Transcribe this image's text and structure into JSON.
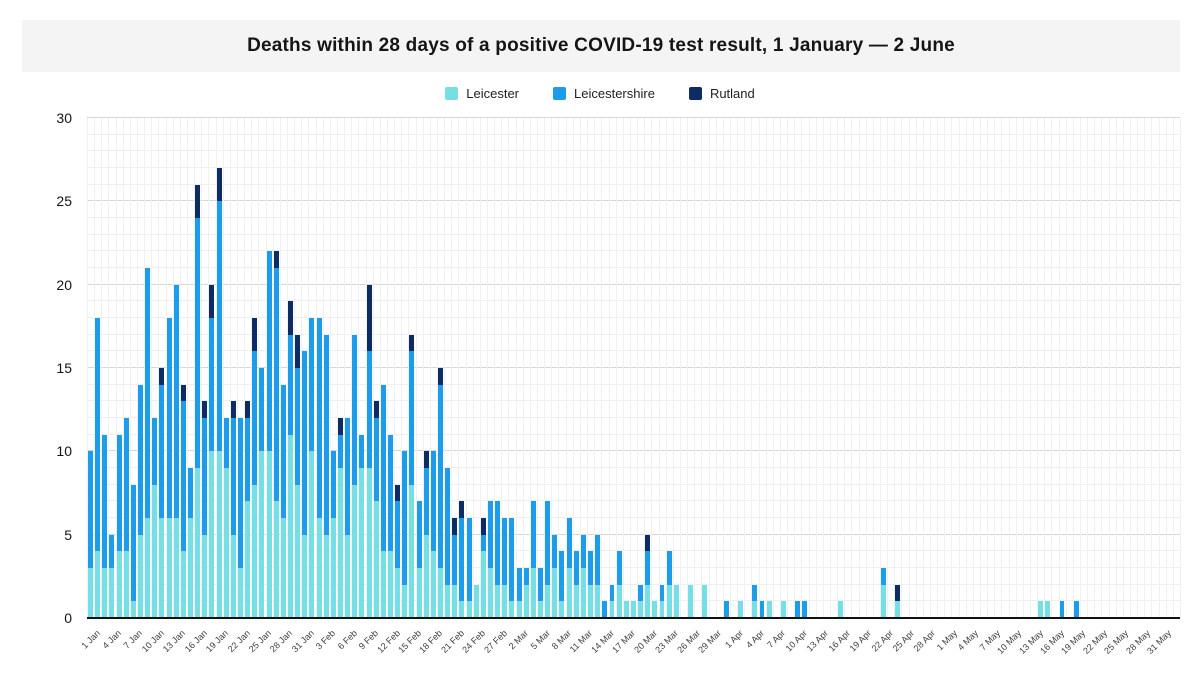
{
  "title": "Deaths within 28 days of a positive COVID-19 test result, 1 January — 2 June",
  "legend": [
    {
      "label": "Leicester",
      "color": "#76dfe6"
    },
    {
      "label": "Leicestershire",
      "color": "#1c9cea"
    },
    {
      "label": "Rutland",
      "color": "#0d2c66"
    }
  ],
  "colors": {
    "axis": "#111111",
    "grid_minor": "#efefef",
    "grid_major": "#d7d7d7",
    "title_band": "#f4f4f4"
  },
  "chart_data": {
    "type": "bar",
    "stacked": true,
    "title": "Deaths within 28 days of a positive COVID-19 test result, 1 January — 2 June",
    "xlabel": "",
    "ylabel": "",
    "ylim": [
      0,
      30
    ],
    "y_ticks": [
      0,
      5,
      10,
      15,
      20,
      25,
      30
    ],
    "grid": true,
    "legend_position": "top",
    "x_tick_every": 3,
    "x": [
      "1 Jan",
      "2 Jan",
      "3 Jan",
      "4 Jan",
      "5 Jan",
      "6 Jan",
      "7 Jan",
      "8 Jan",
      "9 Jan",
      "10 Jan",
      "11 Jan",
      "12 Jan",
      "13 Jan",
      "14 Jan",
      "15 Jan",
      "16 Jan",
      "17 Jan",
      "18 Jan",
      "19 Jan",
      "20 Jan",
      "21 Jan",
      "22 Jan",
      "23 Jan",
      "24 Jan",
      "25 Jan",
      "26 Jan",
      "27 Jan",
      "28 Jan",
      "29 Jan",
      "30 Jan",
      "31 Jan",
      "1 Feb",
      "2 Feb",
      "3 Feb",
      "4 Feb",
      "5 Feb",
      "6 Feb",
      "7 Feb",
      "8 Feb",
      "9 Feb",
      "10 Feb",
      "11 Feb",
      "12 Feb",
      "13 Feb",
      "14 Feb",
      "15 Feb",
      "16 Feb",
      "17 Feb",
      "18 Feb",
      "19 Feb",
      "20 Feb",
      "21 Feb",
      "22 Feb",
      "23 Feb",
      "24 Feb",
      "25 Feb",
      "26 Feb",
      "27 Feb",
      "28 Feb",
      "1 Mar",
      "2 Mar",
      "3 Mar",
      "4 Mar",
      "5 Mar",
      "6 Mar",
      "7 Mar",
      "8 Mar",
      "9 Mar",
      "10 Mar",
      "11 Mar",
      "12 Mar",
      "13 Mar",
      "14 Mar",
      "15 Mar",
      "16 Mar",
      "17 Mar",
      "18 Mar",
      "19 Mar",
      "20 Mar",
      "21 Mar",
      "22 Mar",
      "23 Mar",
      "24 Mar",
      "25 Mar",
      "26 Mar",
      "27 Mar",
      "28 Mar",
      "29 Mar",
      "30 Mar",
      "31 Mar",
      "1 Apr",
      "2 Apr",
      "3 Apr",
      "4 Apr",
      "5 Apr",
      "6 Apr",
      "7 Apr",
      "8 Apr",
      "9 Apr",
      "10 Apr",
      "11 Apr",
      "12 Apr",
      "13 Apr",
      "14 Apr",
      "15 Apr",
      "16 Apr",
      "17 Apr",
      "18 Apr",
      "19 Apr",
      "20 Apr",
      "21 Apr",
      "22 Apr",
      "23 Apr",
      "24 Apr",
      "25 Apr",
      "26 Apr",
      "27 Apr",
      "28 Apr",
      "29 Apr",
      "30 Apr",
      "1 May",
      "2 May",
      "3 May",
      "4 May",
      "5 May",
      "6 May",
      "7 May",
      "8 May",
      "9 May",
      "10 May",
      "11 May",
      "12 May",
      "13 May",
      "14 May",
      "15 May",
      "16 May",
      "17 May",
      "18 May",
      "19 May",
      "20 May",
      "21 May",
      "22 May",
      "23 May",
      "24 May",
      "25 May",
      "26 May",
      "27 May",
      "28 May",
      "29 May",
      "30 May",
      "31 May",
      "1 Jun",
      "2 Jun"
    ],
    "series": [
      {
        "name": "Leicester",
        "color": "#76dfe6",
        "values": [
          3,
          4,
          3,
          3,
          4,
          4,
          1,
          5,
          6,
          8,
          6,
          6,
          6,
          4,
          6,
          9,
          5,
          10,
          10,
          9,
          5,
          3,
          7,
          8,
          10,
          10,
          7,
          6,
          11,
          8,
          5,
          10,
          6,
          5,
          6,
          9,
          5,
          8,
          9,
          9,
          7,
          4,
          4,
          3,
          2,
          8,
          3,
          5,
          4,
          3,
          2,
          2,
          1,
          1,
          2,
          4,
          3,
          2,
          2,
          1,
          1,
          2,
          3,
          1,
          2,
          3,
          1,
          3,
          2,
          3,
          2,
          2,
          0,
          1,
          2,
          1,
          1,
          1,
          2,
          1,
          1,
          2,
          2,
          0,
          2,
          0,
          2,
          0,
          0,
          0,
          0,
          1,
          0,
          1,
          0,
          1,
          0,
          1,
          0,
          0,
          0,
          0,
          0,
          0,
          0,
          1,
          0,
          0,
          0,
          0,
          0,
          2,
          0,
          1,
          0,
          0,
          0,
          0,
          0,
          0,
          0,
          0,
          0,
          0,
          0,
          0,
          0,
          0,
          0,
          0,
          0,
          0,
          0,
          1,
          1,
          0,
          0,
          0,
          0,
          0,
          0,
          0,
          0,
          0,
          0,
          0,
          0,
          0,
          0,
          0,
          0,
          0,
          0
        ]
      },
      {
        "name": "Leicestershire",
        "color": "#1c9cea",
        "values": [
          7,
          14,
          8,
          2,
          7,
          8,
          7,
          9,
          15,
          4,
          8,
          12,
          14,
          9,
          3,
          15,
          7,
          8,
          15,
          3,
          7,
          9,
          5,
          8,
          5,
          12,
          14,
          8,
          6,
          7,
          11,
          8,
          12,
          12,
          4,
          2,
          7,
          9,
          2,
          7,
          5,
          10,
          7,
          4,
          8,
          8,
          4,
          4,
          6,
          11,
          7,
          3,
          5,
          5,
          0,
          1,
          4,
          5,
          4,
          5,
          2,
          1,
          4,
          2,
          5,
          2,
          3,
          3,
          2,
          2,
          2,
          3,
          1,
          1,
          2,
          0,
          0,
          1,
          2,
          0,
          1,
          2,
          0,
          0,
          0,
          0,
          0,
          0,
          0,
          1,
          0,
          0,
          0,
          1,
          1,
          0,
          0,
          0,
          0,
          1,
          1,
          0,
          0,
          0,
          0,
          0,
          0,
          0,
          0,
          0,
          0,
          1,
          0,
          0,
          0,
          0,
          0,
          0,
          0,
          0,
          0,
          0,
          0,
          0,
          0,
          0,
          0,
          0,
          0,
          0,
          0,
          0,
          0,
          0,
          0,
          0,
          1,
          0,
          1,
          0,
          0,
          0,
          0,
          0,
          0,
          0,
          0,
          0,
          0,
          0,
          0,
          0,
          0
        ]
      },
      {
        "name": "Rutland",
        "color": "#0d2c66",
        "values": [
          0,
          0,
          0,
          0,
          0,
          0,
          0,
          0,
          0,
          0,
          1,
          0,
          0,
          1,
          0,
          2,
          1,
          2,
          2,
          0,
          1,
          0,
          1,
          2,
          0,
          0,
          1,
          0,
          2,
          2,
          0,
          0,
          0,
          0,
          0,
          1,
          0,
          0,
          0,
          4,
          1,
          0,
          0,
          1,
          0,
          1,
          0,
          1,
          0,
          1,
          0,
          1,
          1,
          0,
          0,
          1,
          0,
          0,
          0,
          0,
          0,
          0,
          0,
          0,
          0,
          0,
          0,
          0,
          0,
          0,
          0,
          0,
          0,
          0,
          0,
          0,
          0,
          0,
          1,
          0,
          0,
          0,
          0,
          0,
          0,
          0,
          0,
          0,
          0,
          0,
          0,
          0,
          0,
          0,
          0,
          0,
          0,
          0,
          0,
          0,
          0,
          0,
          0,
          0,
          0,
          0,
          0,
          0,
          0,
          0,
          0,
          0,
          0,
          1,
          0,
          0,
          0,
          0,
          0,
          0,
          0,
          0,
          0,
          0,
          0,
          0,
          0,
          0,
          0,
          0,
          0,
          0,
          0,
          0,
          0,
          0,
          0,
          0,
          0,
          0,
          0,
          0,
          0,
          0,
          0,
          0,
          0,
          0,
          0,
          0,
          0,
          0,
          0
        ]
      }
    ]
  }
}
